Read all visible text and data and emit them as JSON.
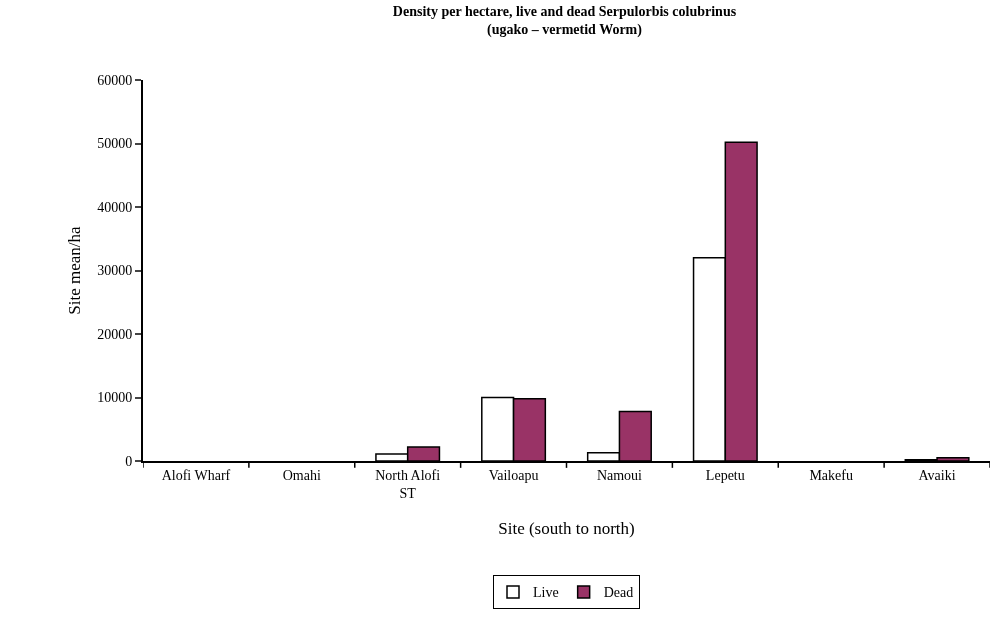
{
  "chart_data": {
    "type": "bar",
    "title": "Density per hectare, live and dead Serpulorbis colubrinus",
    "subtitle": "(ugako – vermetid Worm)",
    "xlabel": "Site (south to north)",
    "ylabel": "Site mean/ha",
    "categories": [
      "Alofi Wharf",
      "Omahi",
      "North Alofi ST",
      "Vailoapu",
      "Namoui",
      "Lepetu",
      "Makefu",
      "Avaiki"
    ],
    "series": [
      {
        "name": "Live",
        "color": "#ffffff",
        "values": [
          0,
          0,
          1100,
          10000,
          1300,
          32000,
          0,
          200
        ]
      },
      {
        "name": "Dead",
        "color": "#993366",
        "values": [
          0,
          0,
          2200,
          9800,
          7800,
          50200,
          0,
          500
        ]
      }
    ],
    "ylim": [
      0,
      60000
    ],
    "yticks": [
      0,
      10000,
      20000,
      30000,
      40000,
      50000,
      60000
    ],
    "grid": false,
    "legend": "bottom"
  }
}
